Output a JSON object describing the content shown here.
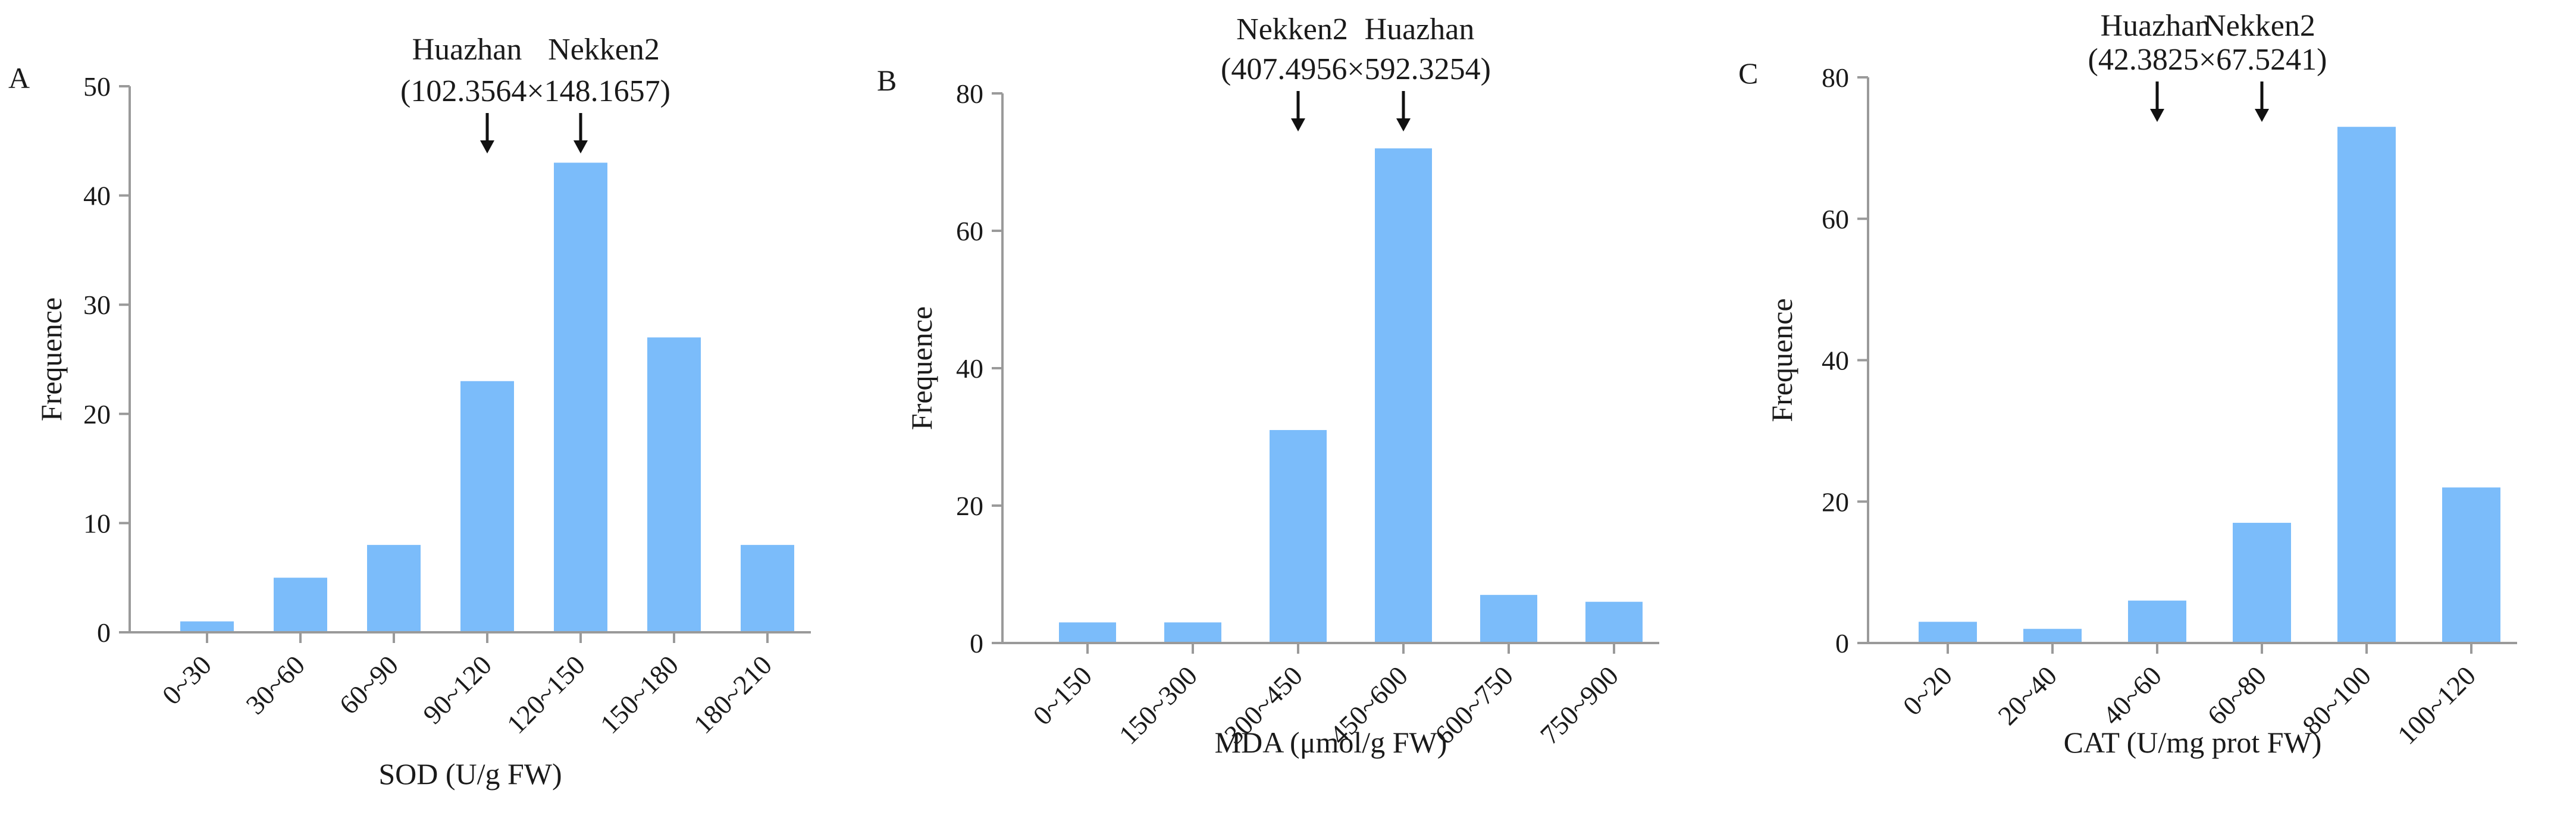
{
  "chart_data": [
    {
      "type": "bar",
      "panel_label": "A",
      "ylabel": "Frequence",
      "xlabel": "SOD (U/g FW)",
      "ylim": [
        0,
        50
      ],
      "yticks": [
        0,
        10,
        20,
        30,
        40,
        50
      ],
      "categories": [
        "0~30",
        "30~60",
        "60~90",
        "90~120",
        "120~150",
        "150~180",
        "180~210"
      ],
      "values": [
        1,
        5,
        8,
        23,
        43,
        27,
        8
      ],
      "annotation": {
        "left_name": "Huazhan",
        "right_name": "Nekken2",
        "values_text": "(102.3564×148.1657)",
        "arrow_categories": [
          "90~120",
          "120~150"
        ]
      }
    },
    {
      "type": "bar",
      "panel_label": "B",
      "ylabel": "Frequence",
      "xlabel": "MDA (μmol/g FW)",
      "ylim": [
        0,
        80
      ],
      "yticks": [
        0,
        20,
        40,
        60,
        80
      ],
      "categories": [
        "0~150",
        "150~300",
        "300~450",
        "450~600",
        "600~750",
        "750~900"
      ],
      "values": [
        3,
        3,
        31,
        72,
        7,
        6
      ],
      "annotation": {
        "left_name": "Nekken2",
        "right_name": "Huazhan",
        "values_text": "(407.4956×592.3254)",
        "arrow_categories": [
          "300~450",
          "450~600"
        ]
      }
    },
    {
      "type": "bar",
      "panel_label": "C",
      "ylabel": "Frequence",
      "xlabel": "CAT (U/mg prot FW)",
      "ylim": [
        0,
        80
      ],
      "yticks": [
        0,
        20,
        40,
        60,
        80
      ],
      "categories": [
        "0~20",
        "20~40",
        "40~60",
        "60~80",
        "80~100",
        "100~120"
      ],
      "values": [
        3,
        2,
        6,
        17,
        73,
        22
      ],
      "annotation": {
        "left_name": "Huazhan",
        "right_name": "Nekken2",
        "values_text": "(42.3825×67.5241)",
        "arrow_categories": [
          "40~60",
          "60~80"
        ]
      }
    }
  ],
  "colors": {
    "bar": "#7bbcfa",
    "axis": "#9a9a9a",
    "text": "#1a1a1a"
  }
}
